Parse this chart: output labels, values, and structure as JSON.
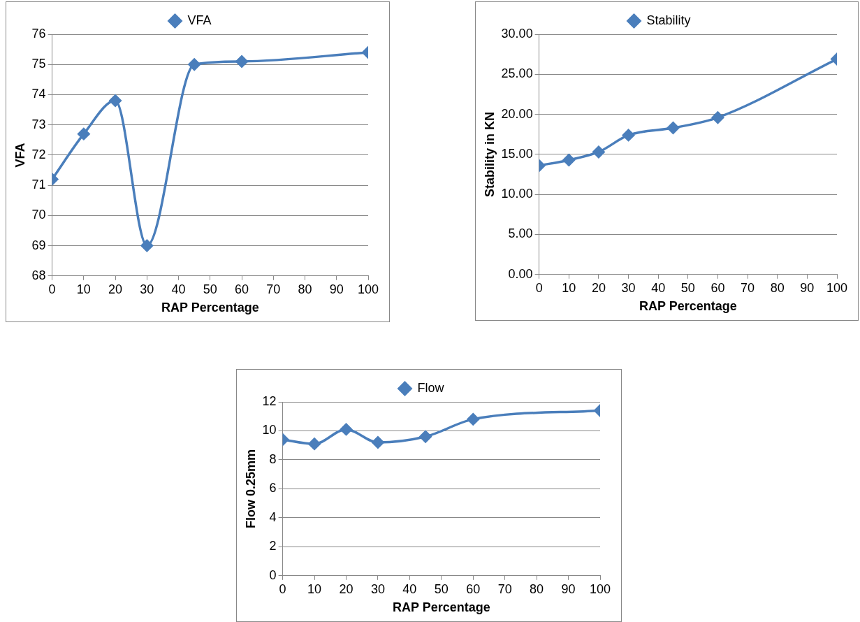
{
  "chart_data": [
    {
      "type": "line",
      "xlabel": "RAP Percentage",
      "ylabel": "VFA",
      "x": [
        0,
        10,
        20,
        30,
        45,
        60,
        100
      ],
      "series": [
        {
          "name": "VFA",
          "color": "#4a7ebb",
          "values": [
            71.2,
            72.7,
            73.8,
            69.0,
            75.0,
            75.1,
            75.4
          ]
        }
      ],
      "xlim": [
        0,
        100
      ],
      "xticks": [
        0,
        10,
        20,
        30,
        40,
        50,
        60,
        70,
        80,
        90,
        100
      ],
      "ylim": [
        68,
        76
      ],
      "yticks": [
        68,
        69,
        70,
        71,
        72,
        73,
        74,
        75,
        76
      ],
      "grid": "y",
      "legend": "top",
      "marker": "diamond",
      "line_style": "solid"
    },
    {
      "type": "line",
      "xlabel": "RAP Percentage",
      "ylabel": "Stability in KN",
      "x": [
        0,
        10,
        20,
        30,
        45,
        60,
        100
      ],
      "series": [
        {
          "name": "Stability",
          "color": "#4a7ebb",
          "values": [
            13.6,
            14.3,
            15.3,
            17.4,
            18.3,
            19.6,
            26.9
          ]
        }
      ],
      "xlim": [
        0,
        100
      ],
      "xticks": [
        0,
        10,
        20,
        30,
        40,
        50,
        60,
        70,
        80,
        90,
        100
      ],
      "ylim": [
        0,
        30
      ],
      "yticks": [
        {
          "value": 0,
          "label": "0.00"
        },
        {
          "value": 5,
          "label": "5.00"
        },
        {
          "value": 10,
          "label": "10.00"
        },
        {
          "value": 15,
          "label": "15.00"
        },
        {
          "value": 20,
          "label": "20.00"
        },
        {
          "value": 25,
          "label": "25.00"
        },
        {
          "value": 30,
          "label": "30.00"
        }
      ],
      "grid": "y",
      "legend": "top",
      "marker": "diamond",
      "line_style": "solid"
    },
    {
      "type": "line",
      "xlabel": "RAP Percentage",
      "ylabel": "Flow 0.25mm",
      "x": [
        0,
        10,
        20,
        30,
        45,
        60,
        100
      ],
      "series": [
        {
          "name": "Flow",
          "color": "#4a7ebb",
          "values": [
            9.4,
            9.1,
            10.1,
            9.2,
            9.6,
            10.8,
            11.4
          ]
        }
      ],
      "xlim": [
        0,
        100
      ],
      "xticks": [
        0,
        10,
        20,
        30,
        40,
        50,
        60,
        70,
        80,
        90,
        100
      ],
      "ylim": [
        0,
        12
      ],
      "yticks": [
        0,
        2,
        4,
        6,
        8,
        10,
        12
      ],
      "grid": "y",
      "legend": "top",
      "marker": "diamond",
      "line_style": "solid"
    }
  ]
}
